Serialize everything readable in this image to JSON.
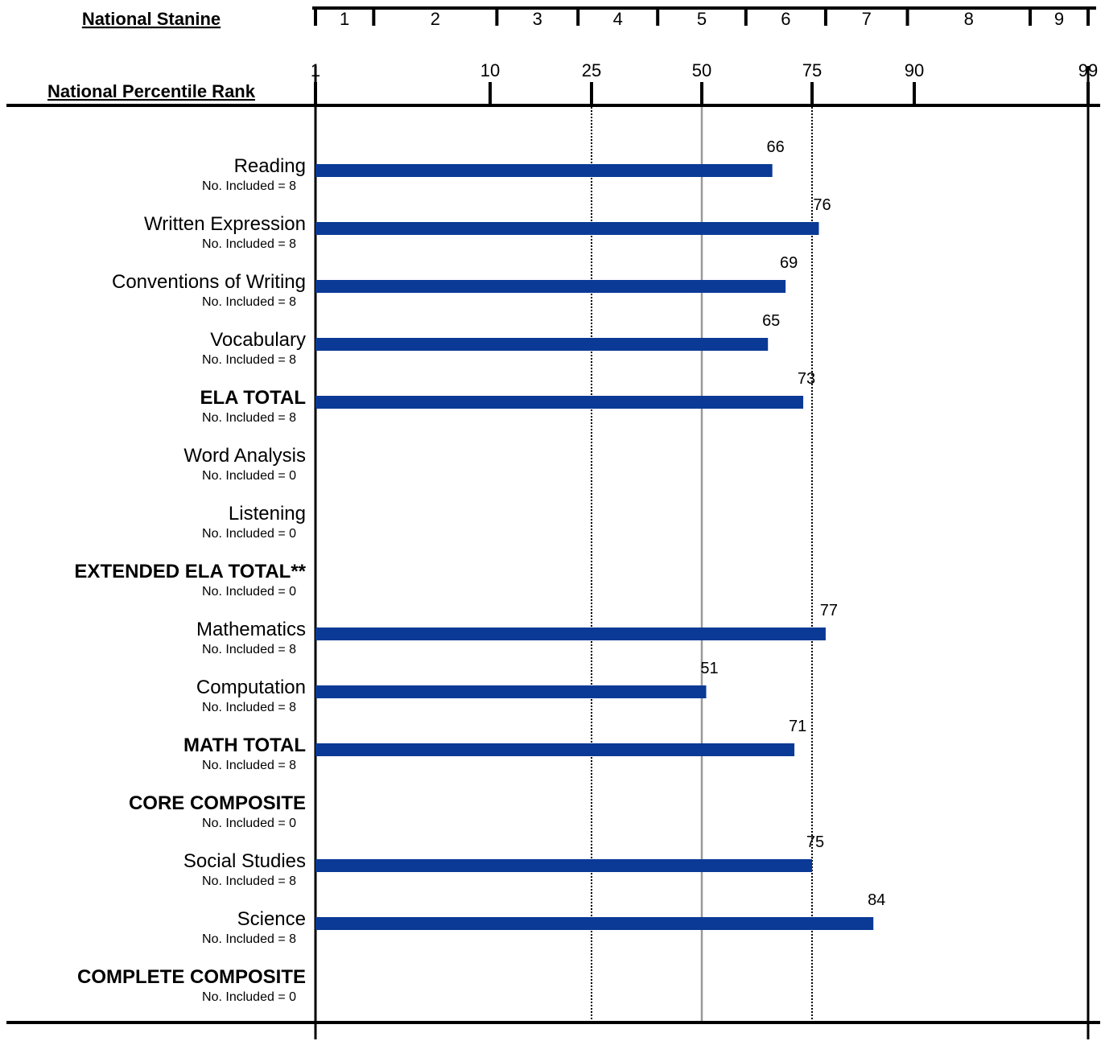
{
  "chart_data": {
    "type": "bar",
    "orientation": "horizontal",
    "stanine_label": "National Stanine",
    "percentile_label": "National Percentile Rank",
    "stanines": [
      "1",
      "2",
      "3",
      "4",
      "5",
      "6",
      "7",
      "8",
      "9"
    ],
    "percentile_ticks": [
      "1",
      "10",
      "25",
      "50",
      "75",
      "90",
      "99"
    ],
    "xlim": [
      1,
      99
    ],
    "reference_lines": [
      25,
      50,
      75
    ],
    "sub_prefix": "No. Included = ",
    "bar_color": "#0a3a96",
    "categories": [
      "Reading",
      "Written Expression",
      "Conventions of Writing",
      "Vocabulary",
      "ELA TOTAL",
      "Word Analysis",
      "Listening",
      "EXTENDED ELA TOTAL**",
      "Mathematics",
      "Computation",
      "MATH TOTAL",
      "CORE COMPOSITE",
      "Social Studies",
      "Science",
      "COMPLETE COMPOSITE"
    ],
    "bold": [
      false,
      false,
      false,
      false,
      true,
      false,
      false,
      true,
      false,
      false,
      true,
      true,
      false,
      false,
      true
    ],
    "no_included": [
      8,
      8,
      8,
      8,
      8,
      0,
      0,
      0,
      8,
      8,
      8,
      0,
      8,
      8,
      0
    ],
    "values": [
      66,
      76,
      69,
      65,
      73,
      null,
      null,
      null,
      77,
      51,
      71,
      null,
      75,
      84,
      null
    ]
  }
}
